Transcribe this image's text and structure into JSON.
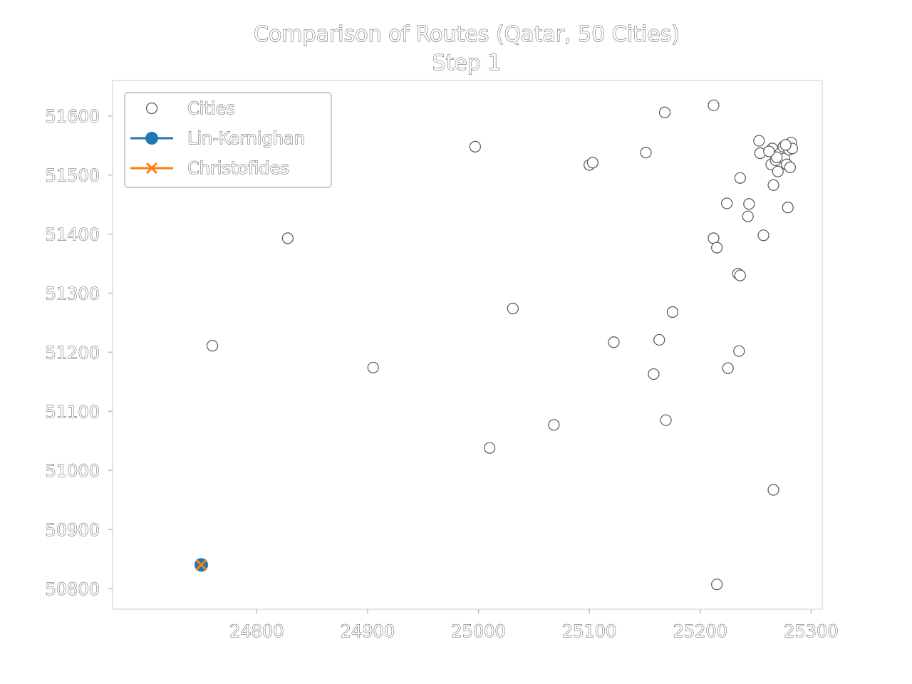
{
  "chart_data": {
    "type": "scatter",
    "title": "Comparison of Routes (Qatar, 50 Cities)",
    "subtitle": "Step 1",
    "xlabel": "",
    "ylabel": "",
    "xlim": [
      24670,
      25310
    ],
    "ylim": [
      50765,
      51660
    ],
    "xticks": [
      24800,
      24900,
      25000,
      25100,
      25200,
      25300
    ],
    "yticks": [
      50800,
      50900,
      51000,
      51100,
      51200,
      51300,
      51400,
      51500,
      51600
    ],
    "grid": false,
    "legend_position": "top-left",
    "series": [
      {
        "name": "Cities",
        "marker": "circle-open",
        "color": "#ffffff",
        "points": [
          [
            24750,
            50840
          ],
          [
            24760,
            51211
          ],
          [
            24828,
            51393
          ],
          [
            24905,
            51174
          ],
          [
            24997,
            51548
          ],
          [
            25010,
            51038
          ],
          [
            25031,
            51274
          ],
          [
            25068,
            51077
          ],
          [
            25100,
            51517
          ],
          [
            25103,
            51521
          ],
          [
            25122,
            51217
          ],
          [
            25151,
            51538
          ],
          [
            25158,
            51163
          ],
          [
            25163,
            51221
          ],
          [
            25168,
            51606
          ],
          [
            25169,
            51085
          ],
          [
            25175,
            51268
          ],
          [
            25212,
            51618
          ],
          [
            25212,
            51393
          ],
          [
            25215,
            51377
          ],
          [
            25215,
            50807
          ],
          [
            25224,
            51452
          ],
          [
            25225,
            51173
          ],
          [
            25234,
            51333
          ],
          [
            25235,
            51202
          ],
          [
            25236,
            51495
          ],
          [
            25236,
            51330
          ],
          [
            25243,
            51430
          ],
          [
            25244,
            51451
          ],
          [
            25253,
            51558
          ],
          [
            25254,
            51537
          ],
          [
            25257,
            51398
          ],
          [
            25264,
            51518
          ],
          [
            25265,
            51545
          ],
          [
            25266,
            51483
          ],
          [
            25266,
            50967
          ],
          [
            25268,
            51525
          ],
          [
            25270,
            51506
          ],
          [
            25272,
            51537
          ],
          [
            25275,
            51548
          ],
          [
            25276,
            51528
          ],
          [
            25278,
            51518
          ],
          [
            25279,
            51445
          ],
          [
            25280,
            51543
          ],
          [
            25281,
            51513
          ],
          [
            25282,
            51555
          ],
          [
            25283,
            51545
          ],
          [
            25269,
            51530
          ],
          [
            25262,
            51540
          ],
          [
            25277,
            51551
          ]
        ]
      },
      {
        "name": "Lin-Kernighan",
        "marker": "circle-filled",
        "color": "#1f77b4",
        "points": [
          [
            24750,
            50840
          ]
        ]
      },
      {
        "name": "Christofides",
        "marker": "x",
        "color": "#ff7f0e",
        "points": [
          [
            24750,
            50840
          ]
        ]
      }
    ]
  }
}
